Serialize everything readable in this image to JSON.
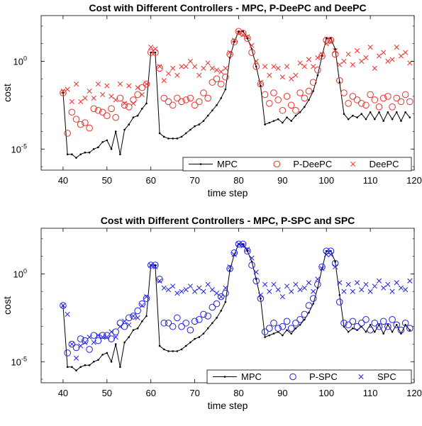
{
  "chart_data": [
    {
      "type": "line",
      "title": "Cost with Different Controllers - MPC, P-DeePC and DeePC",
      "xlabel": "time step",
      "ylabel": "cost",
      "xlim": [
        35,
        120
      ],
      "ylim_log10": [
        -6.2,
        2.6
      ],
      "yscale": "log",
      "grid": false,
      "legend_position": "bottom-right",
      "xticks": [
        "40",
        "50",
        "60",
        "70",
        "80",
        "90",
        "100",
        "110",
        "120"
      ],
      "yticks": [
        {
          "base": "10",
          "exp": "0",
          "log10": 0
        },
        {
          "base": "10",
          "exp": "-5",
          "log10": -5
        }
      ],
      "series": [
        {
          "name": "MPC",
          "style": "line-dot",
          "color": "#000000",
          "x": [
            40,
            41,
            42,
            43,
            44,
            45,
            46,
            47,
            48,
            49,
            50,
            51,
            52,
            53,
            54,
            55,
            56,
            57,
            58,
            59,
            60,
            61,
            62,
            63,
            64,
            65,
            66,
            67,
            68,
            69,
            70,
            71,
            72,
            73,
            74,
            75,
            76,
            77,
            78,
            79,
            80,
            81,
            82,
            83,
            84,
            85,
            86,
            87,
            88,
            89,
            90,
            91,
            92,
            93,
            94,
            95,
            96,
            97,
            98,
            99,
            100,
            101,
            102,
            103,
            104,
            105,
            106,
            107,
            108,
            109,
            110,
            111,
            112,
            113,
            114,
            115,
            116,
            117,
            118,
            119
          ],
          "log10": [
            -1.8,
            -5.3,
            -5.3,
            -5.5,
            -5.3,
            -5.2,
            -5.2,
            -5.0,
            -4.9,
            -4.6,
            -4.5,
            -5.0,
            -4.0,
            -5.3,
            -3.9,
            -3.6,
            -3.2,
            -3.1,
            -2.7,
            -2.4,
            0.5,
            0.5,
            -4.1,
            -4.3,
            -4.4,
            -4.4,
            -4.4,
            -4.3,
            -4.1,
            -3.9,
            -3.7,
            -3.6,
            -3.4,
            -3.1,
            -2.8,
            -2.5,
            -2.1,
            -1.6,
            0.2,
            1.1,
            1.7,
            1.7,
            1.3,
            0.7,
            -0.3,
            -1.4,
            -3.6,
            -3.5,
            -3.4,
            -3.3,
            -3.5,
            -3.2,
            -3.4,
            -3.1,
            -2.9,
            -2.6,
            -2.2,
            -1.7,
            -0.8,
            0.3,
            1.3,
            1.3,
            0.7,
            -1.2,
            -3.0,
            -3.3,
            -3.1,
            -3.2,
            -3.0,
            -3.3,
            -2.9,
            -3.3,
            -2.9,
            -3.4,
            -2.9,
            -3.3,
            -2.9,
            -3.4,
            -2.9,
            -3.2
          ]
        },
        {
          "name": "P-DeePC",
          "style": "circle",
          "color": "#e8302b",
          "x": [
            40,
            41,
            42,
            43,
            44,
            45,
            46,
            47,
            48,
            49,
            50,
            51,
            52,
            53,
            54,
            55,
            56,
            57,
            58,
            59,
            60,
            61,
            62,
            63,
            64,
            65,
            66,
            67,
            68,
            69,
            70,
            71,
            72,
            73,
            74,
            75,
            76,
            77,
            78,
            79,
            80,
            81,
            82,
            83,
            84,
            85,
            86,
            87,
            88,
            89,
            90,
            91,
            92,
            93,
            94,
            95,
            96,
            97,
            98,
            99,
            100,
            101,
            102,
            103,
            104,
            105,
            106,
            107,
            108,
            109,
            110,
            111,
            112,
            113,
            114,
            115,
            116,
            117,
            118,
            119
          ],
          "log10": [
            -1.8,
            -4.1,
            -2.9,
            -3.3,
            -3.6,
            -3.5,
            -3.8,
            -2.7,
            -2.8,
            -2.9,
            -3.1,
            -2.7,
            -3.2,
            -2.1,
            -2.5,
            -2.6,
            -2.2,
            -1.9,
            -1.5,
            -1.3,
            0.5,
            0.5,
            -0.4,
            -2.1,
            -2.3,
            -2.5,
            -2.1,
            -2.3,
            -2.2,
            -2.1,
            -2.5,
            -2.3,
            -1.8,
            -2.1,
            -1.2,
            -1.0,
            -1.3,
            -0.9,
            0.4,
            1.1,
            1.7,
            1.6,
            1.3,
            0.5,
            -0.3,
            -1.3,
            -1.9,
            -2.4,
            -1.8,
            -2.2,
            -2.8,
            -2.0,
            -2.5,
            -2.8,
            -1.8,
            -2.1,
            -1.7,
            -1.2,
            -0.5,
            0.3,
            1.2,
            1.2,
            0.4,
            -1.1,
            -1.8,
            -2.4,
            -2.0,
            -2.2,
            -2.4,
            -2.5,
            -1.9,
            -2.2,
            -2.6,
            -2.1,
            -2.0,
            -2.6,
            -2.1,
            -2.3,
            -1.9,
            -2.3
          ]
        },
        {
          "name": "DeePC",
          "style": "x",
          "color": "#e8302b",
          "x": [
            40,
            41,
            42,
            43,
            44,
            45,
            46,
            47,
            48,
            49,
            50,
            51,
            52,
            53,
            54,
            55,
            56,
            57,
            58,
            59,
            60,
            61,
            62,
            63,
            64,
            65,
            66,
            67,
            68,
            69,
            70,
            71,
            72,
            73,
            74,
            75,
            76,
            77,
            78,
            79,
            80,
            81,
            82,
            83,
            84,
            85,
            86,
            87,
            88,
            89,
            90,
            91,
            92,
            93,
            94,
            95,
            96,
            97,
            98,
            99,
            100,
            101,
            102,
            103,
            104,
            105,
            106,
            107,
            108,
            109,
            110,
            111,
            112,
            113,
            114,
            115,
            116,
            117,
            118,
            119
          ],
          "log10": [
            -1.7,
            -1.6,
            -2.3,
            -1.3,
            -2.3,
            -2.1,
            -1.7,
            -2.1,
            -1.3,
            -1.9,
            -1.4,
            -2.0,
            -2.2,
            -1.3,
            -2.4,
            -1.4,
            -2.4,
            -1.5,
            -1.9,
            -1.3,
            0.8,
            0.7,
            -0.3,
            -1.1,
            -0.7,
            -0.4,
            -0.8,
            -0.3,
            -0.3,
            0.0,
            -0.3,
            -0.8,
            -0.4,
            -0.1,
            -0.4,
            -0.5,
            -0.6,
            -0.4,
            0.5,
            1.2,
            1.6,
            1.5,
            1.4,
            0.9,
            0.0,
            -1.2,
            -0.3,
            -0.8,
            -0.3,
            -0.4,
            -0.9,
            -0.3,
            -1.0,
            -0.8,
            -0.1,
            -0.3,
            0.1,
            -0.3,
            0.2,
            0.4,
            1.0,
            1.1,
            0.6,
            -0.2,
            0.0,
            0.4,
            -0.2,
            0.6,
            0.0,
            0.2,
            0.8,
            -0.4,
            0.3,
            0.5,
            0.0,
            0.1,
            0.8,
            0.3,
            0.5,
            -0.1
          ]
        }
      ]
    },
    {
      "type": "line",
      "title": "Cost with Different Controllers - MPC, P-SPC and SPC",
      "xlabel": "time step",
      "ylabel": "cost",
      "xlim": [
        35,
        120
      ],
      "ylim_log10": [
        -6.2,
        2.6
      ],
      "yscale": "log",
      "grid": false,
      "legend_position": "bottom-right",
      "xticks": [
        "40",
        "50",
        "60",
        "70",
        "80",
        "90",
        "100",
        "110",
        "120"
      ],
      "yticks": [
        {
          "base": "10",
          "exp": "0",
          "log10": 0
        },
        {
          "base": "10",
          "exp": "-5",
          "log10": -5
        }
      ],
      "series": [
        {
          "name": "MPC",
          "style": "line-dot",
          "color": "#000000",
          "x": [
            40,
            41,
            42,
            43,
            44,
            45,
            46,
            47,
            48,
            49,
            50,
            51,
            52,
            53,
            54,
            55,
            56,
            57,
            58,
            59,
            60,
            61,
            62,
            63,
            64,
            65,
            66,
            67,
            68,
            69,
            70,
            71,
            72,
            73,
            74,
            75,
            76,
            77,
            78,
            79,
            80,
            81,
            82,
            83,
            84,
            85,
            86,
            87,
            88,
            89,
            90,
            91,
            92,
            93,
            94,
            95,
            96,
            97,
            98,
            99,
            100,
            101,
            102,
            103,
            104,
            105,
            106,
            107,
            108,
            109,
            110,
            111,
            112,
            113,
            114,
            115,
            116,
            117,
            118,
            119
          ],
          "log10": [
            -1.8,
            -5.3,
            -5.3,
            -5.5,
            -5.3,
            -5.2,
            -5.2,
            -5.0,
            -4.9,
            -4.6,
            -4.5,
            -5.0,
            -4.0,
            -5.3,
            -3.9,
            -3.6,
            -3.2,
            -3.1,
            -2.7,
            -2.4,
            0.5,
            0.5,
            -4.1,
            -4.3,
            -4.4,
            -4.4,
            -4.4,
            -4.3,
            -4.1,
            -3.9,
            -3.7,
            -3.6,
            -3.4,
            -3.1,
            -2.8,
            -2.5,
            -2.1,
            -1.6,
            0.2,
            1.1,
            1.7,
            1.7,
            1.3,
            0.7,
            -0.3,
            -1.4,
            -3.6,
            -3.5,
            -3.4,
            -3.3,
            -3.5,
            -3.2,
            -3.4,
            -3.1,
            -2.9,
            -2.6,
            -2.2,
            -1.7,
            -0.8,
            0.3,
            1.3,
            1.3,
            0.7,
            -1.2,
            -3.0,
            -3.3,
            -3.1,
            -3.2,
            -3.0,
            -3.3,
            -2.9,
            -3.3,
            -2.9,
            -3.4,
            -2.9,
            -3.3,
            -2.9,
            -3.4,
            -2.9,
            -3.2
          ]
        },
        {
          "name": "P-SPC",
          "style": "circle",
          "color": "#1f1fe0",
          "x": [
            40,
            41,
            42,
            43,
            44,
            45,
            46,
            47,
            48,
            49,
            50,
            51,
            52,
            53,
            54,
            55,
            56,
            57,
            58,
            59,
            60,
            61,
            62,
            63,
            64,
            65,
            66,
            67,
            68,
            69,
            70,
            71,
            72,
            73,
            74,
            75,
            76,
            77,
            78,
            79,
            80,
            81,
            82,
            83,
            84,
            85,
            86,
            87,
            88,
            89,
            90,
            91,
            92,
            93,
            94,
            95,
            96,
            97,
            98,
            99,
            100,
            101,
            102,
            103,
            104,
            105,
            106,
            107,
            108,
            109,
            110,
            111,
            112,
            113,
            114,
            115,
            116,
            117,
            118,
            119
          ],
          "log10": [
            -1.8,
            -4.5,
            -4.0,
            -4.2,
            -3.7,
            -3.8,
            -4.3,
            -3.5,
            -3.8,
            -3.5,
            -3.5,
            -3.7,
            -3.3,
            -2.8,
            -3.0,
            -2.5,
            -2.4,
            -2.1,
            -1.7,
            -1.4,
            0.5,
            0.5,
            -0.3,
            -2.8,
            -2.8,
            -3.0,
            -2.5,
            -3.0,
            -2.8,
            -3.2,
            -2.7,
            -2.6,
            -2.3,
            -2.4,
            -1.9,
            -1.7,
            -1.3,
            -1.1,
            0.3,
            1.2,
            1.7,
            1.7,
            1.3,
            0.5,
            -0.4,
            -1.4,
            -3.3,
            -3.1,
            -2.8,
            -3.1,
            -3.0,
            -2.7,
            -3.1,
            -2.8,
            -2.6,
            -2.3,
            -1.8,
            -1.4,
            -0.6,
            0.4,
            1.3,
            1.3,
            0.6,
            -1.6,
            -2.8,
            -2.9,
            -2.7,
            -3.0,
            -2.8,
            -2.6,
            -3.2,
            -2.8,
            -3.0,
            -2.7,
            -3.0,
            -2.6,
            -2.9,
            -3.2,
            -2.8,
            -3.1
          ]
        },
        {
          "name": "SPC",
          "style": "x",
          "color": "#1f1fe0",
          "x": [
            40,
            41,
            42,
            43,
            44,
            45,
            46,
            47,
            48,
            49,
            50,
            51,
            52,
            53,
            54,
            55,
            56,
            57,
            58,
            59,
            60,
            61,
            62,
            63,
            64,
            65,
            66,
            67,
            68,
            69,
            70,
            71,
            72,
            73,
            74,
            75,
            76,
            77,
            78,
            79,
            80,
            81,
            82,
            83,
            84,
            85,
            86,
            87,
            88,
            89,
            90,
            91,
            92,
            93,
            94,
            95,
            96,
            97,
            98,
            99,
            100,
            101,
            102,
            103,
            104,
            105,
            106,
            107,
            108,
            109,
            110,
            111,
            112,
            113,
            114,
            115,
            116,
            117,
            118,
            119
          ],
          "log10": [
            -1.8,
            -2.3,
            -4.0,
            -4.8,
            -4.1,
            -3.9,
            -3.6,
            -3.9,
            -3.5,
            -3.6,
            -3.6,
            -3.3,
            -3.6,
            -3.0,
            -2.7,
            -2.9,
            -2.4,
            -2.5,
            -1.8,
            -1.3,
            0.5,
            0.4,
            -0.4,
            -0.8,
            -0.9,
            -0.7,
            -1.1,
            -1.0,
            -0.9,
            -0.7,
            -1.0,
            -0.8,
            -1.0,
            -0.6,
            -0.9,
            -1.1,
            -1.3,
            -0.8,
            0.4,
            1.1,
            1.7,
            1.6,
            1.4,
            0.9,
            0.1,
            -1.2,
            -0.6,
            -1.0,
            -0.6,
            -0.9,
            -1.3,
            -0.7,
            -1.0,
            -0.6,
            -0.9,
            -0.8,
            -0.5,
            -1.0,
            -0.3,
            0.3,
            1.1,
            1.1,
            0.4,
            -0.5,
            -1.0,
            -0.6,
            -1.0,
            -0.5,
            -0.9,
            -0.6,
            -1.0,
            -0.7,
            -0.4,
            -0.8,
            -0.6,
            -1.0,
            -0.5,
            -0.8,
            -0.9,
            -0.4
          ]
        }
      ]
    }
  ]
}
